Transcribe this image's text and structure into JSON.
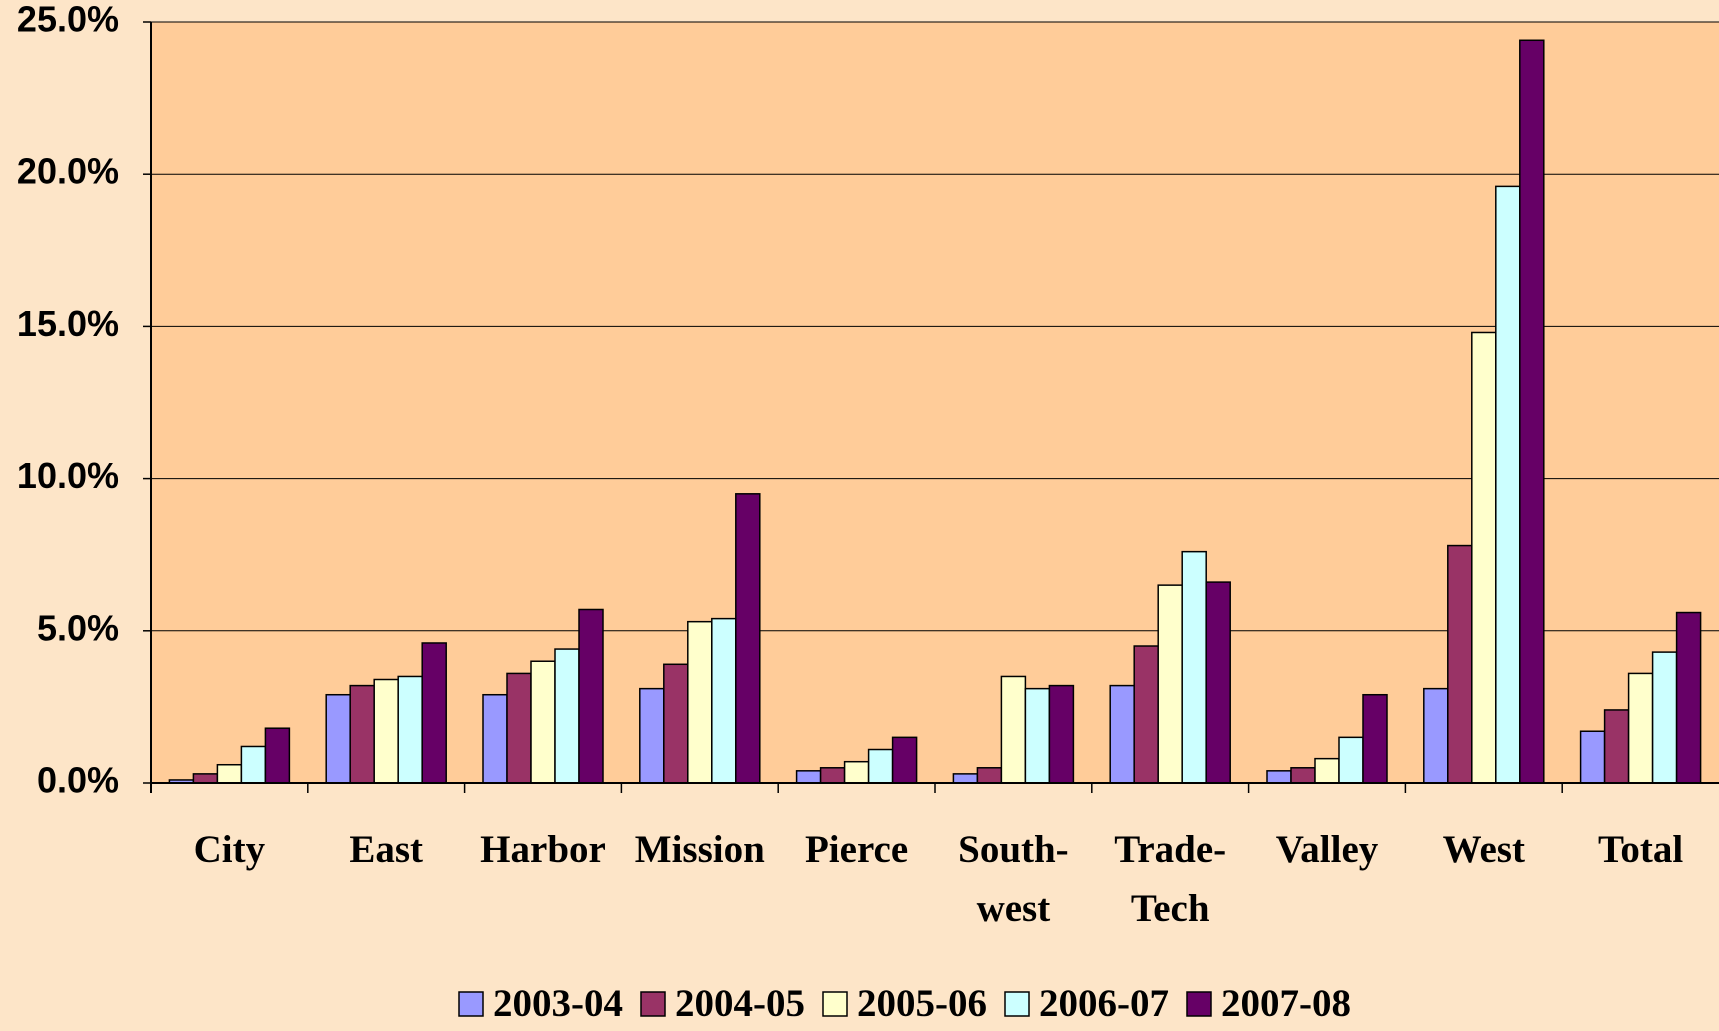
{
  "chart_data": {
    "type": "bar",
    "categories": [
      "City",
      "East",
      "Harbor",
      "Mission",
      "Pierce",
      "South-\nwest",
      "Trade-\nTech",
      "Valley",
      "West",
      "Total"
    ],
    "series": [
      {
        "name": "2003-04",
        "color": "#9999ff",
        "values": [
          0.1,
          2.9,
          2.9,
          3.1,
          0.4,
          0.3,
          3.2,
          0.4,
          3.1,
          1.7
        ]
      },
      {
        "name": "2004-05",
        "color": "#993366",
        "values": [
          0.3,
          3.2,
          3.6,
          3.9,
          0.5,
          0.5,
          4.5,
          0.5,
          7.8,
          2.4
        ]
      },
      {
        "name": "2005-06",
        "color": "#ffffcc",
        "values": [
          0.6,
          3.4,
          4.0,
          5.3,
          0.7,
          3.5,
          6.5,
          0.8,
          14.8,
          3.6
        ]
      },
      {
        "name": "2006-07",
        "color": "#ccffff",
        "values": [
          1.2,
          3.5,
          4.4,
          5.4,
          1.1,
          3.1,
          7.6,
          1.5,
          19.6,
          4.3
        ]
      },
      {
        "name": "2007-08",
        "color": "#660066",
        "values": [
          1.8,
          4.6,
          5.7,
          9.5,
          1.5,
          3.2,
          6.6,
          2.9,
          24.4,
          5.6
        ]
      }
    ],
    "ylim": [
      0,
      25
    ],
    "yticks": [
      {
        "value": 0,
        "label": "0.0%"
      },
      {
        "value": 5,
        "label": "5.0%"
      },
      {
        "value": 10,
        "label": "10.0%"
      },
      {
        "value": 15,
        "label": "15.0%"
      },
      {
        "value": 20,
        "label": "20.0%"
      },
      {
        "value": 25,
        "label": "25.0%"
      }
    ],
    "grid": true,
    "plot_background": "#ffcc99",
    "legend": "bottom"
  }
}
